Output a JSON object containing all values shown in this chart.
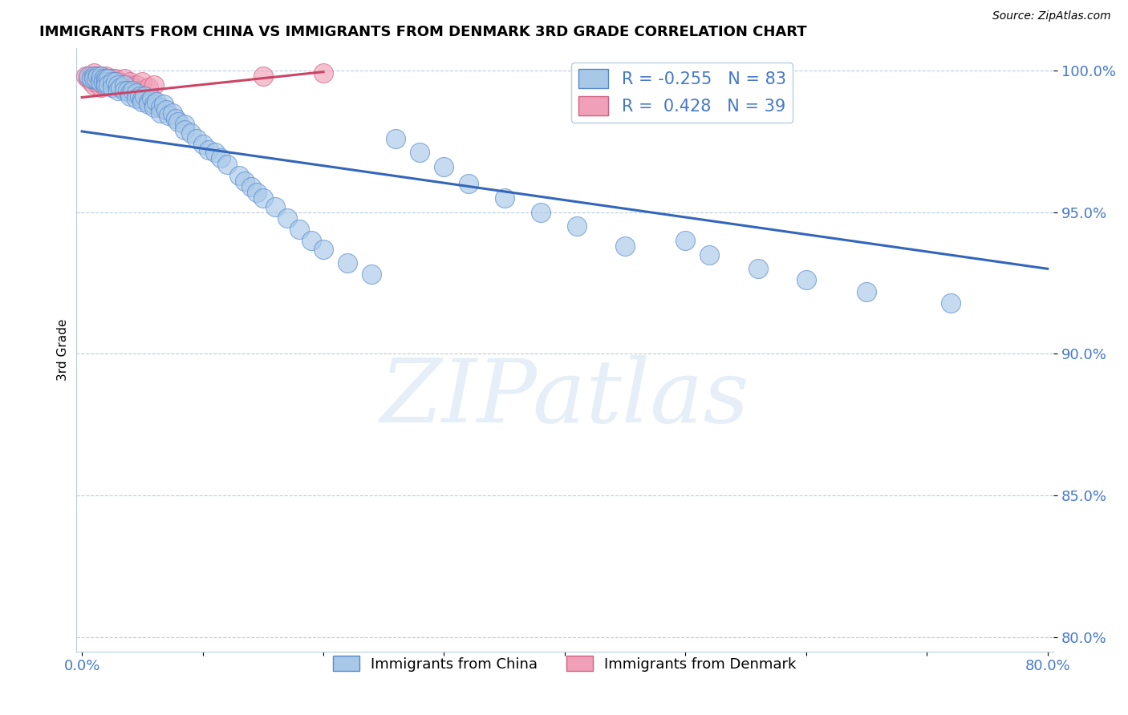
{
  "title": "IMMIGRANTS FROM CHINA VS IMMIGRANTS FROM DENMARK 3RD GRADE CORRELATION CHART",
  "source": "Source: ZipAtlas.com",
  "ylabel": "3rd Grade",
  "xlim": [
    -0.005,
    0.805
  ],
  "ylim": [
    0.795,
    1.008
  ],
  "yticks": [
    0.8,
    0.85,
    0.9,
    0.95,
    1.0
  ],
  "ytick_labels": [
    "80.0%",
    "85.0%",
    "90.0%",
    "95.0%",
    "100.0%"
  ],
  "xticks": [
    0.0,
    0.1,
    0.2,
    0.3,
    0.4,
    0.5,
    0.6,
    0.7,
    0.8
  ],
  "xtick_labels": [
    "0.0%",
    "",
    "",
    "",
    "",
    "",
    "",
    "",
    "80.0%"
  ],
  "legend_blue_r": "-0.255",
  "legend_blue_n": "83",
  "legend_pink_r": "0.428",
  "legend_pink_n": "39",
  "blue_color": "#A8C8E8",
  "pink_color": "#F0A0B8",
  "blue_edge_color": "#5588CC",
  "pink_edge_color": "#D06080",
  "blue_line_color": "#3366BB",
  "pink_line_color": "#CC4466",
  "axis_color": "#4477CC",
  "watermark": "ZIPatlas",
  "china_x": [
    0.005,
    0.008,
    0.01,
    0.01,
    0.012,
    0.013,
    0.015,
    0.015,
    0.016,
    0.018,
    0.018,
    0.02,
    0.02,
    0.02,
    0.022,
    0.022,
    0.025,
    0.025,
    0.028,
    0.03,
    0.03,
    0.032,
    0.035,
    0.035,
    0.038,
    0.04,
    0.04,
    0.042,
    0.045,
    0.045,
    0.048,
    0.05,
    0.05,
    0.052,
    0.055,
    0.055,
    0.058,
    0.06,
    0.06,
    0.062,
    0.065,
    0.065,
    0.068,
    0.07,
    0.072,
    0.075,
    0.078,
    0.08,
    0.085,
    0.085,
    0.09,
    0.095,
    0.1,
    0.105,
    0.11,
    0.115,
    0.12,
    0.13,
    0.135,
    0.14,
    0.145,
    0.15,
    0.16,
    0.17,
    0.18,
    0.19,
    0.2,
    0.22,
    0.24,
    0.26,
    0.28,
    0.3,
    0.32,
    0.35,
    0.38,
    0.41,
    0.45,
    0.5,
    0.52,
    0.56,
    0.6,
    0.65,
    0.72
  ],
  "china_y": [
    0.998,
    0.997,
    0.998,
    0.997,
    0.997,
    0.998,
    0.997,
    0.996,
    0.998,
    0.997,
    0.996,
    0.997,
    0.996,
    0.995,
    0.997,
    0.995,
    0.996,
    0.994,
    0.996,
    0.995,
    0.993,
    0.994,
    0.995,
    0.993,
    0.993,
    0.992,
    0.991,
    0.993,
    0.992,
    0.99,
    0.991,
    0.99,
    0.989,
    0.991,
    0.989,
    0.988,
    0.99,
    0.988,
    0.987,
    0.989,
    0.987,
    0.985,
    0.988,
    0.986,
    0.984,
    0.985,
    0.983,
    0.982,
    0.981,
    0.979,
    0.978,
    0.976,
    0.974,
    0.972,
    0.971,
    0.969,
    0.967,
    0.963,
    0.961,
    0.959,
    0.957,
    0.955,
    0.952,
    0.948,
    0.944,
    0.94,
    0.937,
    0.932,
    0.928,
    0.976,
    0.971,
    0.966,
    0.96,
    0.955,
    0.95,
    0.945,
    0.938,
    0.94,
    0.935,
    0.93,
    0.926,
    0.922,
    0.918
  ],
  "denmark_x": [
    0.003,
    0.005,
    0.006,
    0.008,
    0.008,
    0.01,
    0.01,
    0.01,
    0.012,
    0.012,
    0.014,
    0.015,
    0.015,
    0.016,
    0.018,
    0.018,
    0.02,
    0.02,
    0.022,
    0.022,
    0.024,
    0.025,
    0.025,
    0.026,
    0.028,
    0.028,
    0.03,
    0.032,
    0.035,
    0.038,
    0.04,
    0.042,
    0.045,
    0.048,
    0.05,
    0.055,
    0.06,
    0.15,
    0.2
  ],
  "denmark_y": [
    0.998,
    0.997,
    0.998,
    0.998,
    0.996,
    0.999,
    0.997,
    0.995,
    0.998,
    0.996,
    0.997,
    0.998,
    0.996,
    0.994,
    0.997,
    0.995,
    0.998,
    0.996,
    0.997,
    0.995,
    0.996,
    0.997,
    0.994,
    0.996,
    0.997,
    0.995,
    0.996,
    0.994,
    0.997,
    0.995,
    0.996,
    0.994,
    0.995,
    0.993,
    0.996,
    0.994,
    0.995,
    0.998,
    0.999
  ],
  "blue_trend_x": [
    0.0,
    0.8
  ],
  "blue_trend_y": [
    0.9785,
    0.93
  ],
  "pink_trend_x": [
    0.0,
    0.2
  ],
  "pink_trend_y": [
    0.9905,
    0.9995
  ]
}
